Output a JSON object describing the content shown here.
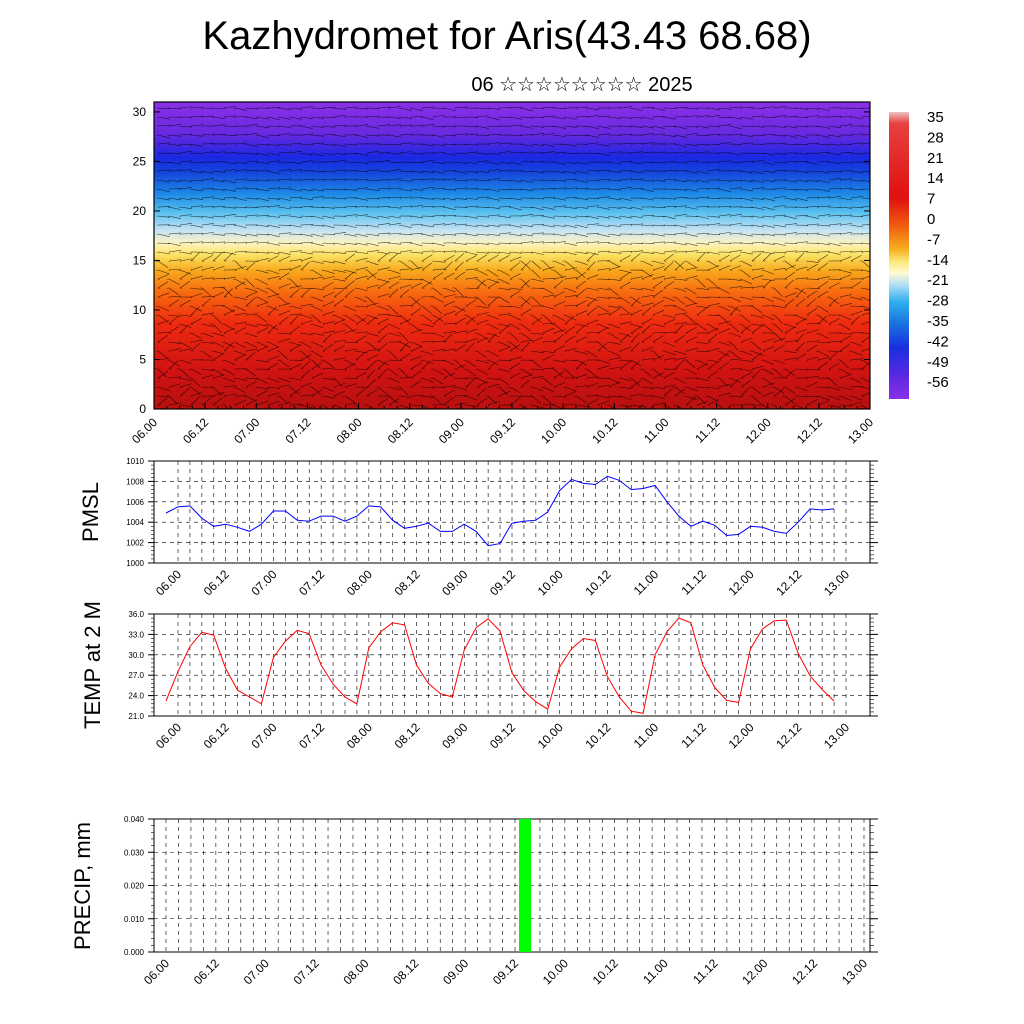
{
  "title": "Kazhydromet for Aris(43.43 68.68)",
  "subtitle": "06 ☆☆☆☆☆☆☆☆ 2025",
  "chart_data": [
    {
      "type": "heatmap",
      "name": "Temperature field with wind barbs",
      "x_ticks": [
        "06.00",
        "06.12",
        "07.00",
        "07.12",
        "08.00",
        "08.12",
        "09.00",
        "09.12",
        "10.00",
        "10.12",
        "11.00",
        "11.12",
        "12.00",
        "12.12",
        "13.00"
      ],
      "y_ticks": [
        "0",
        "5",
        "10",
        "15",
        "20",
        "25",
        "30"
      ],
      "ylim": [
        0,
        31
      ],
      "colorbar_labels": [
        "35",
        "28",
        "21",
        "14",
        "7",
        "0",
        "-7",
        "-14",
        "-21",
        "-28",
        "-35",
        "-42",
        "-49",
        "-56"
      ]
    },
    {
      "type": "line",
      "ylabel": "PMSL",
      "x_ticks": [
        "06.00",
        "06.12",
        "07.00",
        "07.12",
        "08.00",
        "08.12",
        "09.00",
        "09.12",
        "10.00",
        "10.12",
        "11.00",
        "11.12",
        "12.00",
        "12.12",
        "13.00"
      ],
      "y_ticks": [
        "1000",
        "1002",
        "1004",
        "1006",
        "1008",
        "1010"
      ],
      "ylim": [
        1000,
        1010
      ],
      "color": "#0000ff",
      "values": [
        1004.9,
        1005.5,
        1005.6,
        1004.4,
        1003.6,
        1003.8,
        1003.5,
        1003.1,
        1003.8,
        1005.1,
        1005.1,
        1004.2,
        1004.1,
        1004.6,
        1004.6,
        1004.1,
        1004.6,
        1005.6,
        1005.5,
        1004.2,
        1003.4,
        1003.6,
        1003.9,
        1003.1,
        1003.1,
        1003.8,
        1003.1,
        1001.7,
        1001.9,
        1003.9,
        1004.1,
        1004.2,
        1005.0,
        1007.1,
        1008.2,
        1007.8,
        1007.7,
        1008.5,
        1008.1,
        1007.2,
        1007.3,
        1007.6,
        1006.0,
        1004.6,
        1003.6,
        1004.1,
        1003.7,
        1002.7,
        1002.8,
        1003.6,
        1003.5,
        1003.1,
        1002.9,
        1004.0,
        1005.3,
        1005.2,
        1005.3
      ]
    },
    {
      "type": "line",
      "ylabel": "TEMP at 2 M",
      "x_ticks": [
        "06.00",
        "06.12",
        "07.00",
        "07.12",
        "08.00",
        "08.12",
        "09.00",
        "09.12",
        "10.00",
        "10.12",
        "11.00",
        "11.12",
        "12.00",
        "12.12",
        "13.00"
      ],
      "y_ticks": [
        "21.0",
        "24.0",
        "27.0",
        "30.0",
        "33.0",
        "36.0"
      ],
      "ylim": [
        21,
        36
      ],
      "color": "#ff0000",
      "values": [
        23.2,
        27.5,
        31.2,
        33.3,
        32.9,
        28.0,
        24.8,
        23.8,
        22.8,
        29.6,
        32.0,
        33.6,
        33.1,
        28.5,
        25.7,
        23.8,
        22.8,
        31.0,
        33.4,
        34.7,
        34.4,
        28.5,
        25.8,
        24.3,
        23.8,
        30.7,
        34.0,
        35.3,
        33.5,
        27.4,
        24.7,
        23.1,
        22.0,
        28.2,
        30.9,
        32.4,
        32.1,
        26.8,
        23.8,
        21.7,
        21.4,
        30.0,
        33.4,
        35.4,
        34.7,
        28.5,
        25.2,
        23.3,
        23.0,
        30.9,
        33.8,
        35.0,
        35.1,
        30.2,
        26.9,
        24.9,
        23.2
      ]
    },
    {
      "type": "bar",
      "ylabel": "PRECIP, mm",
      "x_ticks": [
        "06.00",
        "06.12",
        "07.00",
        "07.12",
        "08.00",
        "08.12",
        "09.00",
        "09.12",
        "10.00",
        "10.12",
        "11.00",
        "11.12",
        "12.00",
        "12.12",
        "13.00"
      ],
      "y_ticks": [
        "0.000",
        "0.010",
        "0.020",
        "0.030",
        "0.040"
      ],
      "ylim": [
        0,
        0.04
      ],
      "color": "#00ff00",
      "bars": [
        {
          "x_index": 28.8,
          "value": 0.04
        }
      ]
    }
  ]
}
